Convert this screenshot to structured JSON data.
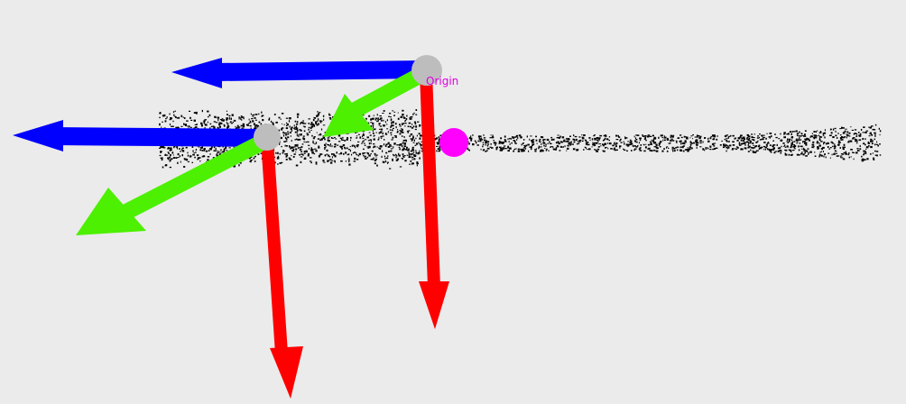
{
  "viewer": {
    "origin_label": "Origin",
    "colors": {
      "background": "#ebebeb",
      "axis_x": "#ff0000",
      "axis_y": "#4cf000",
      "axis_z": "#0000ff",
      "joint": "#bdbdbd",
      "marker": "#ff00ff",
      "points": "#000000"
    }
  }
}
